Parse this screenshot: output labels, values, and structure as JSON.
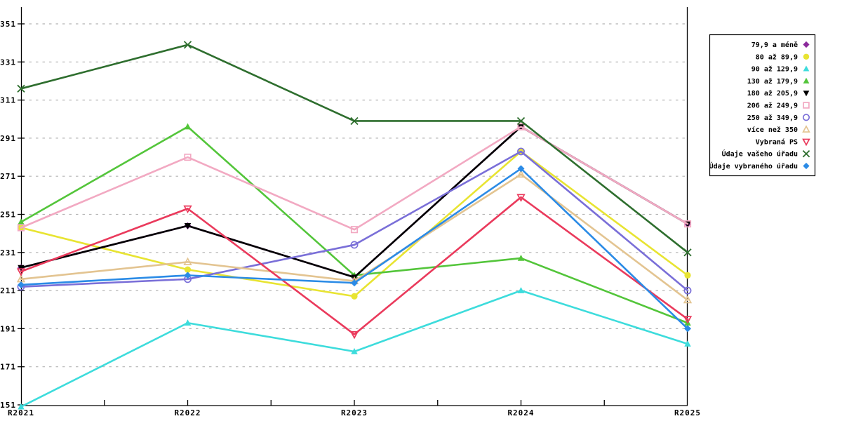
{
  "window": {
    "background": "#ffffff"
  },
  "chart_data": {
    "type": "line",
    "title": "",
    "categories": [
      "R2021",
      "R2022",
      "R2023",
      "R2024",
      "R2025"
    ],
    "y_ticks": [
      151,
      171,
      191,
      211,
      231,
      251,
      271,
      291,
      311,
      331,
      351
    ],
    "ylim": [
      151,
      351
    ],
    "xlabel": "",
    "ylabel": "",
    "grid": "horizontal-dashed",
    "gridline_color": "#b4b4b4",
    "axis_color": "#000000",
    "legend_position": "right-box",
    "legend_border_color": "#000000",
    "legend_background": "#ffffff",
    "series": [
      {
        "name": "79,9 a méně",
        "color": "#8b2a9b",
        "marker": "diamond",
        "fill": true,
        "values": [
          223,
          245,
          218,
          297,
          246
        ]
      },
      {
        "name": "80 až 89,9",
        "color": "#e8e432",
        "marker": "circle",
        "fill": true,
        "values": [
          244,
          222,
          208,
          284,
          219
        ]
      },
      {
        "name": "90 až 129,9",
        "color": "#3ddcdc",
        "marker": "triangle-up",
        "fill": true,
        "values": [
          150,
          194,
          179,
          211,
          183
        ]
      },
      {
        "name": "130 až 179,9",
        "color": "#53c53a",
        "marker": "triangle-up",
        "fill": true,
        "values": [
          247,
          297,
          219,
          228,
          194
        ]
      },
      {
        "name": "180 až 205,9",
        "color": "#000000",
        "marker": "triangle-down",
        "fill": true,
        "values": [
          223,
          245,
          218,
          297,
          246
        ]
      },
      {
        "name": "206 až 249,9",
        "color": "#f2a9c2",
        "marker": "square",
        "fill": false,
        "values": [
          244,
          281,
          243,
          297,
          246
        ]
      },
      {
        "name": "250 až 349,9",
        "color": "#7a6fd8",
        "marker": "circle",
        "fill": false,
        "values": [
          213,
          217,
          235,
          284,
          211
        ]
      },
      {
        "name": "více než 350",
        "color": "#e3c491",
        "marker": "triangle-up",
        "fill": false,
        "values": [
          217,
          226,
          216,
          272,
          206
        ]
      },
      {
        "name": "Vybraná PS",
        "color": "#ea3a5c",
        "marker": "triangle-down",
        "fill": false,
        "values": [
          221,
          254,
          188,
          260,
          196
        ]
      },
      {
        "name": "Údaje vašeho úřadu",
        "color": "#2e6e2e",
        "marker": "x",
        "fill": false,
        "values": [
          317,
          340,
          300,
          300,
          231
        ]
      },
      {
        "name": "Údaje vybraného úřadu",
        "color": "#2b8be6",
        "marker": "diamond",
        "fill": true,
        "values": [
          214,
          219,
          215,
          275,
          191
        ]
      }
    ]
  }
}
